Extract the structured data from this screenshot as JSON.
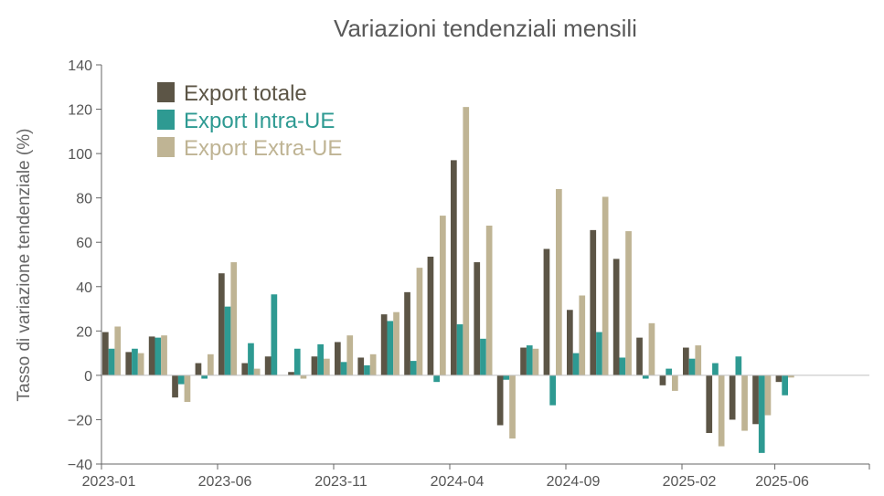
{
  "chart_data": {
    "type": "bar",
    "title": "Variazioni tendenziali mensili",
    "xlabel": "",
    "ylabel": "Tasso di variazione tendenziale (%)",
    "ylim": [
      -40,
      140
    ],
    "yticks": [
      -40,
      -20,
      0,
      20,
      40,
      60,
      80,
      100,
      120,
      140
    ],
    "xtick_labels": [
      "2023-01",
      "2023-06",
      "2023-11",
      "2024-04",
      "2024-09",
      "2025-02",
      "2025-06"
    ],
    "grid": false,
    "legend_position": "top-left",
    "categories": [
      "2023-01",
      "2023-02",
      "2023-03",
      "2023-04",
      "2023-05",
      "2023-06",
      "2023-07",
      "2023-08",
      "2023-09",
      "2023-10",
      "2023-11",
      "2023-12",
      "2024-01",
      "2024-02",
      "2024-03",
      "2024-04",
      "2024-05",
      "2024-06",
      "2024-07",
      "2024-08",
      "2024-09",
      "2024-10",
      "2024-11",
      "2024-12",
      "2025-01",
      "2025-02",
      "2025-03",
      "2025-04",
      "2025-05",
      "2025-06",
      "2025-07",
      "2025-08",
      "2025-09",
      "2025-10"
    ],
    "series": [
      {
        "name": "Export totale",
        "color": "#5c5546",
        "values": [
          19.5,
          10.5,
          17.5,
          -10,
          5.5,
          46,
          5.5,
          8.5,
          1.5,
          8.5,
          15,
          8,
          27.5,
          37.5,
          53.5,
          97,
          51,
          -22.5,
          12.5,
          57,
          29.5,
          65.5,
          52.5,
          17,
          -4.5,
          12.5,
          -26,
          -20,
          -22,
          -3,
          0,
          0,
          0,
          0
        ]
      },
      {
        "name": "Export Intra-UE",
        "color": "#2e9a92",
        "values": [
          12,
          12,
          17,
          -4,
          -1.5,
          31,
          14.5,
          36.5,
          12,
          14,
          6,
          4.5,
          24.5,
          6.5,
          -3,
          23,
          16.5,
          -2,
          13.5,
          -13.5,
          10,
          19.5,
          8,
          -1.5,
          3,
          7.5,
          5.5,
          8.5,
          -35,
          -9,
          0,
          0,
          0,
          0
        ]
      },
      {
        "name": "Export Extra-UE",
        "color": "#bfb494",
        "values": [
          22,
          10,
          18,
          -12,
          9.5,
          51,
          3,
          0,
          -1.5,
          7.5,
          18,
          9.5,
          28.5,
          48.5,
          72,
          121,
          67.5,
          -28.5,
          12,
          84,
          36,
          80.5,
          65,
          23.5,
          -7,
          13.5,
          -32,
          -25,
          -18,
          -1,
          0,
          0,
          0,
          0
        ]
      }
    ]
  }
}
